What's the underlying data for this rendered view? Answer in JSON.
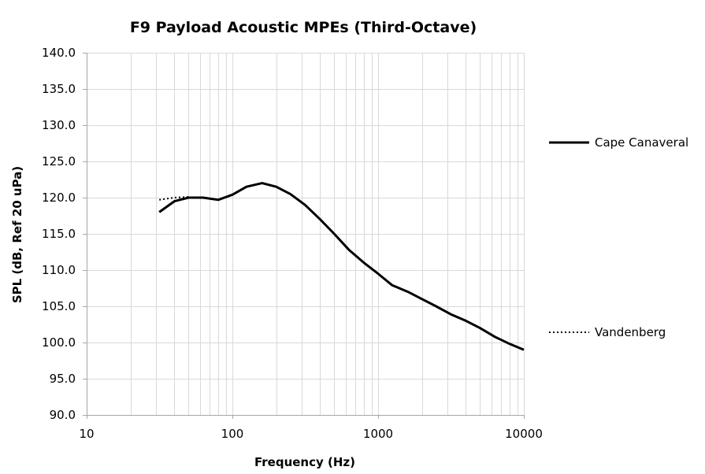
{
  "chart_data": {
    "type": "line",
    "title": "F9 Payload Acoustic MPEs (Third-Octave)",
    "xlabel": "Frequency (Hz)",
    "ylabel": "SPL (dB, Ref 20 uPa)",
    "x_scale": "log",
    "xlim": [
      10,
      10000
    ],
    "ylim": [
      90,
      140
    ],
    "x_ticks": [
      10,
      100,
      1000,
      10000
    ],
    "x_tick_labels": [
      "10",
      "100",
      "1000",
      "10000"
    ],
    "y_ticks": [
      90,
      95,
      100,
      105,
      110,
      115,
      120,
      125,
      130,
      135,
      140
    ],
    "y_tick_labels": [
      "90.0",
      "95.0",
      "100.0",
      "105.0",
      "110.0",
      "115.0",
      "120.0",
      "125.0",
      "130.0",
      "135.0",
      "140.0"
    ],
    "grid": true,
    "legend_position": "right",
    "series": [
      {
        "name": "Cape Canaveral",
        "line_style": "solid",
        "color": "#000000",
        "x": [
          31.5,
          40,
          50,
          63,
          80,
          100,
          125,
          160,
          200,
          250,
          315,
          400,
          500,
          630,
          800,
          1000,
          1250,
          1600,
          2000,
          2500,
          3150,
          4000,
          5000,
          6300,
          8000,
          10000
        ],
        "y": [
          118.0,
          119.5,
          120.0,
          120.0,
          119.7,
          120.4,
          121.5,
          122.0,
          121.5,
          120.5,
          119.0,
          117.0,
          115.0,
          112.8,
          111.0,
          109.5,
          107.9,
          107.0,
          106.0,
          105.0,
          103.9,
          103.0,
          102.0,
          100.8,
          99.8,
          99.0
        ]
      },
      {
        "name": "Vandenberg",
        "line_style": "dotted",
        "color": "#000000",
        "x": [
          31.5,
          40,
          50
        ],
        "y": [
          119.7,
          120.0,
          120.1
        ]
      }
    ]
  }
}
